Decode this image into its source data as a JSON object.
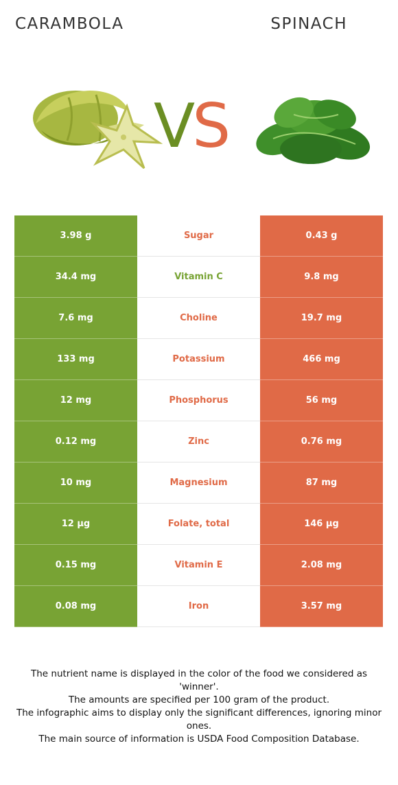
{
  "left_food": {
    "name": "CARAMBOLA",
    "color": "#78a334",
    "image_icon": "carambola-image"
  },
  "right_food": {
    "name": "SPINACH",
    "color": "#e06a47",
    "image_icon": "spinach-image"
  },
  "vs": {
    "v": "V",
    "s": "S"
  },
  "rows": [
    {
      "left": "3.98 g",
      "nutrient": "Sugar",
      "right": "0.43 g",
      "winner": "right"
    },
    {
      "left": "34.4 mg",
      "nutrient": "Vitamin C",
      "right": "9.8 mg",
      "winner": "left"
    },
    {
      "left": "7.6 mg",
      "nutrient": "Choline",
      "right": "19.7 mg",
      "winner": "right"
    },
    {
      "left": "133 mg",
      "nutrient": "Potassium",
      "right": "466 mg",
      "winner": "right"
    },
    {
      "left": "12 mg",
      "nutrient": "Phosphorus",
      "right": "56 mg",
      "winner": "right"
    },
    {
      "left": "0.12 mg",
      "nutrient": "Zinc",
      "right": "0.76 mg",
      "winner": "right"
    },
    {
      "left": "10 mg",
      "nutrient": "Magnesium",
      "right": "87 mg",
      "winner": "right"
    },
    {
      "left": "12 µg",
      "nutrient": "Folate, total",
      "right": "146 µg",
      "winner": "right"
    },
    {
      "left": "0.15 mg",
      "nutrient": "Vitamin E",
      "right": "2.08 mg",
      "winner": "right"
    },
    {
      "left": "0.08 mg",
      "nutrient": "Iron",
      "right": "3.57 mg",
      "winner": "right"
    }
  ],
  "footer": {
    "line1": "The nutrient name is displayed in the color of the food we considered as 'winner'.",
    "line2": "The amounts are specified per 100 gram of the product.",
    "line3": "The infographic aims to display only the significant differences, ignoring minor ones.",
    "line4": "The main source of information is USDA Food Composition Database."
  }
}
